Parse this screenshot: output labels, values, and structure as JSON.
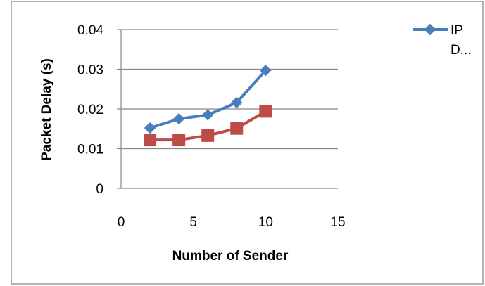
{
  "chart_data": {
    "type": "line",
    "title": "",
    "xlabel": "Number of Sender",
    "ylabel": "Packet Delay (s)",
    "xlim": [
      0,
      15
    ],
    "ylim": [
      0,
      0.04
    ],
    "x_ticks": [
      "0",
      "5",
      "10",
      "15"
    ],
    "y_ticks": [
      "0",
      "0.01",
      "0.02",
      "0.03",
      "0.04"
    ],
    "grid": "horizontal",
    "legend_position": "top-right",
    "series": [
      {
        "name": "IP D...",
        "legend_lines": [
          "IP",
          "D..."
        ],
        "color": "#4a7ebb",
        "marker": "diamond",
        "x": [
          2,
          4,
          6,
          8,
          10
        ],
        "y": [
          0.0152,
          0.0175,
          0.0185,
          0.0216,
          0.0297
        ]
      },
      {
        "color": "#be4b48",
        "marker": "square",
        "x": [
          2,
          4,
          6,
          8,
          10
        ],
        "y": [
          0.0122,
          0.0122,
          0.0133,
          0.0151,
          0.0194
        ]
      }
    ]
  }
}
